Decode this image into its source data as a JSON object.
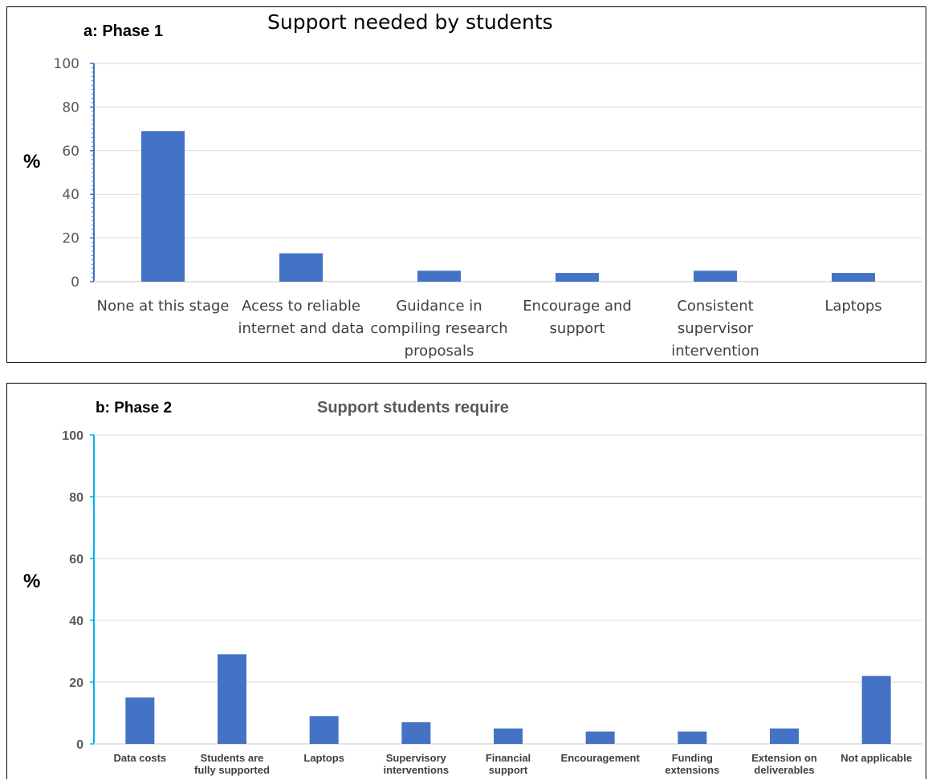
{
  "chart_data": [
    {
      "type": "bar",
      "panel_label": "a: Phase 1",
      "title": "Support needed by students",
      "ylabel": "%",
      "xlabel": "",
      "ylim": [
        0,
        100
      ],
      "yticks": [
        0,
        20,
        40,
        60,
        80,
        100
      ],
      "grid": true,
      "bar_color": "#4472C4",
      "axis_color": "#4472C4",
      "categories": [
        [
          "None at this stage"
        ],
        [
          "Acess to reliable",
          "internet and data"
        ],
        [
          "Guidance in",
          "compiling research",
          "proposals"
        ],
        [
          "Encourage and",
          "support"
        ],
        [
          "Consistent",
          "supervisor",
          "intervention"
        ],
        [
          "Laptops"
        ]
      ],
      "values": [
        69,
        13,
        5,
        4,
        5,
        4
      ]
    },
    {
      "type": "bar",
      "panel_label": "b: Phase 2",
      "title": "Support students require",
      "ylabel": "%",
      "xlabel": "",
      "ylim": [
        0,
        100
      ],
      "yticks": [
        0,
        20,
        40,
        60,
        80,
        100
      ],
      "grid": true,
      "bar_color": "#4472C4",
      "axis_color": "#00B0F0",
      "categories": [
        [
          "Data costs"
        ],
        [
          "Students are",
          "fully supported"
        ],
        [
          "Laptops"
        ],
        [
          "Supervisory",
          "interventions"
        ],
        [
          "Financial",
          "support"
        ],
        [
          "Encouragement"
        ],
        [
          "Funding",
          "extensions"
        ],
        [
          "Extension on",
          "deliverables"
        ],
        [
          "Not applicable"
        ]
      ],
      "values": [
        15,
        29,
        9,
        7,
        5,
        4,
        4,
        5,
        22
      ]
    }
  ]
}
